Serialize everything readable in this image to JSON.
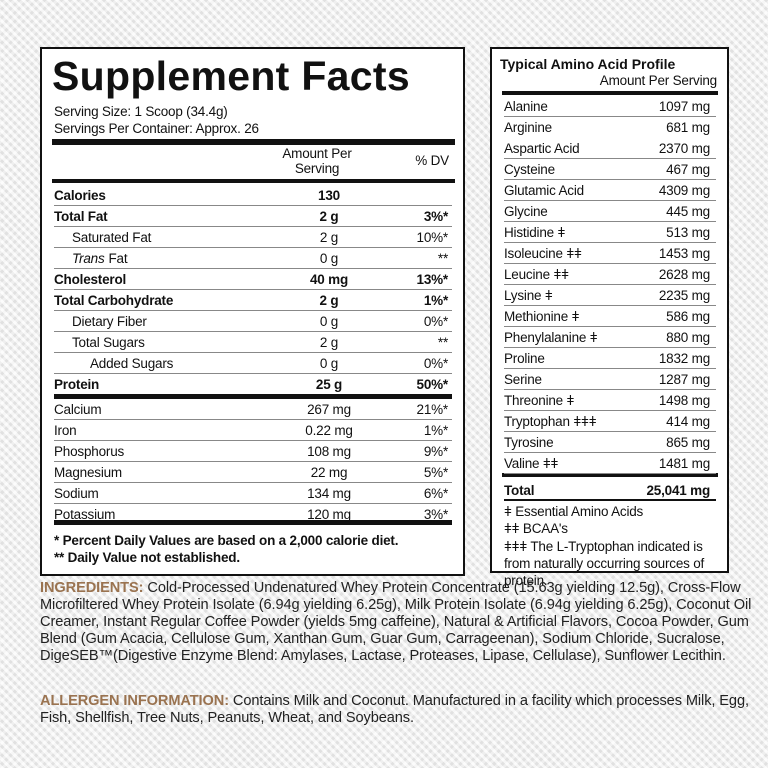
{
  "supplement_facts": {
    "title": "Supplement Facts",
    "serving_size": "Serving Size: 1 Scoop (34.4g)",
    "servings_per_container": "Servings Per Container: Approx. 26",
    "header": {
      "amount": "Amount Per Serving",
      "dv": "% DV"
    },
    "rows": [
      {
        "label": "Calories",
        "amount": "130",
        "dv": null
      },
      {
        "label": "Total Fat",
        "amount": "2 g",
        "dv": "3%*"
      },
      {
        "label": "Saturated Fat",
        "amount": "2 g",
        "dv": "10%*"
      },
      {
        "italic": "Trans",
        "label": "Fat",
        "amount": "0 g",
        "dv": "**"
      },
      {
        "label": "Cholesterol",
        "amount": "40 mg",
        "dv": "13%*"
      },
      {
        "label": "Total Carbohydrate",
        "amount": "2 g",
        "dv": "1%*"
      },
      {
        "label": "Dietary Fiber",
        "amount": "0 g",
        "dv": "0%*"
      },
      {
        "label": "Total Sugars",
        "amount": "2 g",
        "dv": "**"
      },
      {
        "label": "Added Sugars",
        "amount": "0 g",
        "dv": "0%*"
      },
      {
        "label": "Protein",
        "amount": "25 g",
        "dv": "50%*"
      },
      {
        "label": "Calcium",
        "amount": "267 mg",
        "dv": "21%*"
      },
      {
        "label": "Iron",
        "amount": "0.22 mg",
        "dv": "1%*"
      },
      {
        "label": "Phosphorus",
        "amount": "108 mg",
        "dv": "9%*"
      },
      {
        "label": "Magnesium",
        "amount": "22 mg",
        "dv": "5%*"
      },
      {
        "label": "Sodium",
        "amount": "134 mg",
        "dv": "6%*"
      },
      {
        "label": "Potassium",
        "amount": "120 mg",
        "dv": "3%*"
      }
    ],
    "footnotes": [
      "* Percent Daily Values are based on a 2,000 calorie diet.",
      "** Daily Value not established."
    ]
  },
  "amino_profile": {
    "title": "Typical Amino Acid Profile",
    "subtitle": "Amount Per Serving",
    "rows": [
      [
        "Alanine",
        "1097 mg"
      ],
      [
        "Arginine",
        "681 mg"
      ],
      [
        "Aspartic Acid",
        "2370 mg"
      ],
      [
        "Cysteine",
        "467 mg"
      ],
      [
        "Glutamic Acid",
        "4309 mg"
      ],
      [
        "Glycine",
        "445 mg"
      ],
      [
        "Histidine ǂ",
        "513 mg"
      ],
      [
        "Isoleucine ǂǂ",
        "1453 mg"
      ],
      [
        "Leucine ǂǂ",
        "2628 mg"
      ],
      [
        "Lysine ǂ",
        "2235 mg"
      ],
      [
        "Methionine ǂ",
        "586 mg"
      ],
      [
        "Phenylalanine ǂ",
        "880 mg"
      ],
      [
        "Proline",
        "1832 mg"
      ],
      [
        "Serine",
        "1287 mg"
      ],
      [
        "Threonine ǂ",
        "1498 mg"
      ],
      [
        "Tryptophan ǂǂǂ",
        "414 mg"
      ],
      [
        "Tyrosine",
        "865 mg"
      ],
      [
        "Valine ǂǂ",
        "1481 mg"
      ]
    ],
    "total": [
      "Total",
      "25,041 mg"
    ],
    "footnotes": [
      "ǂ Essential Amino Acids",
      "ǂǂ BCAA's",
      "ǂǂǂ The L-Tryptophan indicated is from naturally occurring sources of protein."
    ]
  },
  "ingredients": {
    "label": "INGREDIENTS:",
    "text": "Cold-Processed Undenatured Whey Protein Concentrate (15.63g yielding 12.5g), Cross-Flow Microfiltered Whey Protein Isolate (6.94g yielding 6.25g), Milk Protein Isolate (6.94g yielding 6.25g), Coconut Oil Creamer, Instant Regular Coffee Powder (yields 5mg caffeine), Natural & Artificial Flavors, Cocoa Powder, Gum Blend (Gum Acacia, Cellulose Gum, Xanthan Gum, Guar Gum, Carrageenan), Sodium Chloride, Sucralose, DigeSEB™(Digestive Enzyme Blend: Amylases, Lactase, Proteases, Lipase, Cellulase), Sunflower Lecithin."
  },
  "allergen": {
    "label": "ALLERGEN INFORMATION:",
    "text": "Contains Milk and Coconut. Manufactured in a facility which processes Milk, Egg, Fish, Shellfish, Tree Nuts, Peanuts, Wheat, and Soybeans."
  }
}
